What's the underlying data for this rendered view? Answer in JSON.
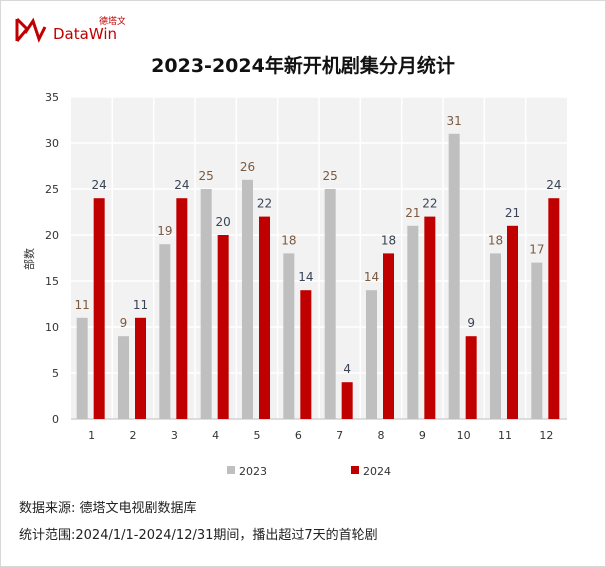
{
  "logo": {
    "brand_cn": "德塔文",
    "brand_en": "DataWin"
  },
  "footer": {
    "source": "数据来源: 德塔文电视剧数据库",
    "range": "统计范围:2024/1/1-2024/12/31期间，播出超过7天的首轮剧"
  },
  "chart_data": {
    "type": "bar",
    "title": "2023-2024年新开机剧集分月统计",
    "xlabel": "",
    "ylabel": "部数",
    "ylim": [
      0,
      35
    ],
    "yticks": [
      0,
      5,
      10,
      15,
      20,
      25,
      30,
      35
    ],
    "grid": true,
    "legend": "bottom",
    "categories": [
      "1",
      "2",
      "3",
      "4",
      "5",
      "6",
      "7",
      "8",
      "9",
      "10",
      "11",
      "12"
    ],
    "series": [
      {
        "name": "2023",
        "color": "#bfbfbf",
        "values": [
          11,
          9,
          19,
          25,
          26,
          18,
          25,
          14,
          21,
          31,
          18,
          17
        ]
      },
      {
        "name": "2024",
        "color": "#c00000",
        "values": [
          24,
          11,
          24,
          20,
          22,
          14,
          4,
          18,
          22,
          9,
          21,
          24
        ]
      }
    ]
  }
}
